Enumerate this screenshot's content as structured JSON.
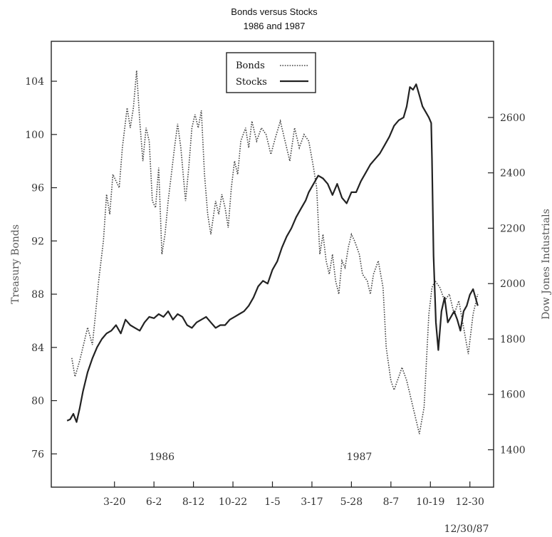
{
  "chart_data": {
    "type": "line",
    "title": "Bonds versus Stocks",
    "subtitle": "1986 and 1987",
    "ylabel_left": "Treasury Bonds",
    "ylabel_right": "Dow Jones Industrials",
    "ylim_left": [
      73.5,
      107
    ],
    "ylim_right": [
      1265,
      2875
    ],
    "left_ticks": [
      "76",
      "80",
      "84",
      "88",
      "92",
      "96",
      "100",
      "104"
    ],
    "right_ticks": [
      "1400",
      "1600",
      "1800",
      "2000",
      "2200",
      "2400",
      "2600"
    ],
    "x_tick_labels": [
      "3-20",
      "6-2",
      "8-12",
      "10-22",
      "1-5",
      "3-17",
      "5-28",
      "8-7",
      "10-19",
      "12-30"
    ],
    "x_tick_positions": [
      3.0,
      5.5,
      8.0,
      10.5,
      13.0,
      15.5,
      18.0,
      20.5,
      23.0,
      25.5
    ],
    "xlim": [
      -1.0,
      27.0
    ],
    "year_labels": [
      {
        "text": "1986",
        "x": 6.0
      },
      {
        "text": "1987",
        "x": 18.5
      }
    ],
    "end_label": "12/30/87",
    "grid": false,
    "legend": {
      "placement": "top-center",
      "entries": [
        "Bonds",
        "Stocks"
      ]
    },
    "series": [
      {
        "name": "Bonds",
        "style": "dotted",
        "axis": "left",
        "x": [
          0.3,
          0.5,
          0.8,
          1.0,
          1.3,
          1.6,
          1.8,
          2.0,
          2.3,
          2.5,
          2.7,
          2.9,
          3.1,
          3.3,
          3.5,
          3.8,
          4.0,
          4.2,
          4.4,
          4.6,
          4.8,
          5.0,
          5.2,
          5.4,
          5.6,
          5.8,
          6.0,
          6.2,
          6.4,
          6.6,
          6.8,
          7.0,
          7.2,
          7.5,
          7.7,
          7.9,
          8.1,
          8.3,
          8.5,
          8.7,
          8.9,
          9.1,
          9.4,
          9.6,
          9.8,
          10.0,
          10.2,
          10.4,
          10.6,
          10.8,
          11.0,
          11.3,
          11.5,
          11.7,
          12.0,
          12.3,
          12.6,
          12.9,
          13.2,
          13.5,
          13.8,
          14.1,
          14.4,
          14.7,
          15.0,
          15.3,
          15.6,
          15.8,
          16.0,
          16.2,
          16.4,
          16.6,
          16.8,
          17.0,
          17.2,
          17.4,
          17.6,
          17.8,
          18.0,
          18.2,
          18.5,
          18.7,
          19.0,
          19.2,
          19.4,
          19.7,
          20.0,
          20.2,
          20.5,
          20.7,
          21.0,
          21.2,
          21.5,
          21.7,
          22.0,
          22.3,
          22.6,
          22.9,
          23.1,
          23.3,
          23.6,
          23.9,
          24.2,
          24.5,
          24.8,
          25.1,
          25.4,
          25.7,
          26.0
        ],
        "y": [
          83.2,
          81.8,
          83.0,
          84.0,
          85.5,
          84.2,
          86.5,
          89.0,
          92.0,
          95.5,
          94.0,
          97.0,
          96.5,
          96.0,
          99.0,
          102.0,
          100.5,
          102.0,
          104.8,
          101.0,
          98.0,
          100.5,
          99.5,
          95.0,
          94.5,
          97.5,
          91.0,
          92.5,
          95.0,
          97.0,
          99.0,
          100.8,
          99.0,
          95.0,
          97.5,
          100.5,
          101.5,
          100.5,
          101.8,
          97.0,
          94.0,
          92.5,
          95.0,
          94.0,
          95.5,
          94.5,
          93.0,
          96.0,
          98.0,
          97.0,
          99.5,
          100.5,
          99.0,
          101.0,
          99.5,
          100.5,
          100.0,
          98.5,
          99.8,
          101.0,
          99.5,
          98.0,
          100.5,
          99.0,
          100.0,
          99.5,
          97.5,
          96.0,
          91.0,
          92.5,
          90.5,
          89.5,
          91.0,
          89.0,
          88.0,
          90.5,
          90.0,
          91.5,
          92.5,
          92.0,
          91.0,
          89.5,
          89.0,
          88.0,
          89.5,
          90.5,
          88.5,
          84.0,
          81.5,
          80.8,
          81.8,
          82.5,
          81.5,
          80.5,
          79.0,
          77.5,
          79.5,
          86.5,
          88.5,
          89.0,
          88.5,
          87.5,
          88.0,
          86.5,
          87.5,
          85.5,
          83.5,
          86.5,
          88.0
        ]
      },
      {
        "name": "Stocks",
        "style": "solid",
        "axis": "right",
        "x": [
          0.0,
          0.2,
          0.4,
          0.6,
          0.8,
          1.0,
          1.3,
          1.6,
          1.9,
          2.2,
          2.5,
          2.8,
          3.1,
          3.4,
          3.7,
          4.0,
          4.3,
          4.6,
          4.9,
          5.2,
          5.5,
          5.8,
          6.1,
          6.4,
          6.7,
          7.0,
          7.3,
          7.6,
          7.9,
          8.2,
          8.5,
          8.8,
          9.1,
          9.4,
          9.7,
          10.0,
          10.3,
          10.6,
          10.9,
          11.2,
          11.5,
          11.8,
          12.1,
          12.4,
          12.7,
          13.0,
          13.3,
          13.6,
          13.9,
          14.2,
          14.5,
          14.8,
          15.1,
          15.3,
          15.6,
          15.9,
          16.2,
          16.5,
          16.8,
          17.1,
          17.4,
          17.7,
          18.0,
          18.3,
          18.6,
          18.9,
          19.2,
          19.5,
          19.8,
          20.1,
          20.4,
          20.7,
          21.0,
          21.3,
          21.5,
          21.7,
          21.9,
          22.1,
          22.3,
          22.5,
          22.7,
          22.9,
          23.05,
          23.1,
          23.2,
          23.35,
          23.5,
          23.7,
          23.9,
          24.1,
          24.3,
          24.5,
          24.7,
          24.9,
          25.1,
          25.3,
          25.5,
          25.7,
          25.9,
          26.0
        ],
        "y": [
          1505,
          1510,
          1530,
          1500,
          1550,
          1610,
          1680,
          1730,
          1770,
          1800,
          1820,
          1830,
          1850,
          1820,
          1870,
          1850,
          1840,
          1830,
          1860,
          1880,
          1875,
          1890,
          1880,
          1900,
          1870,
          1890,
          1880,
          1850,
          1840,
          1860,
          1870,
          1880,
          1860,
          1840,
          1850,
          1850,
          1870,
          1880,
          1890,
          1900,
          1920,
          1950,
          1990,
          2010,
          2000,
          2050,
          2080,
          2130,
          2170,
          2200,
          2240,
          2270,
          2300,
          2330,
          2360,
          2390,
          2380,
          2360,
          2320,
          2360,
          2310,
          2290,
          2330,
          2330,
          2370,
          2400,
          2430,
          2450,
          2470,
          2500,
          2530,
          2570,
          2590,
          2600,
          2640,
          2710,
          2700,
          2720,
          2680,
          2640,
          2620,
          2600,
          2580,
          2450,
          2100,
          1860,
          1760,
          1900,
          1950,
          1860,
          1880,
          1900,
          1870,
          1830,
          1900,
          1920,
          1960,
          1980,
          1940,
          1920
        ]
      }
    ]
  }
}
